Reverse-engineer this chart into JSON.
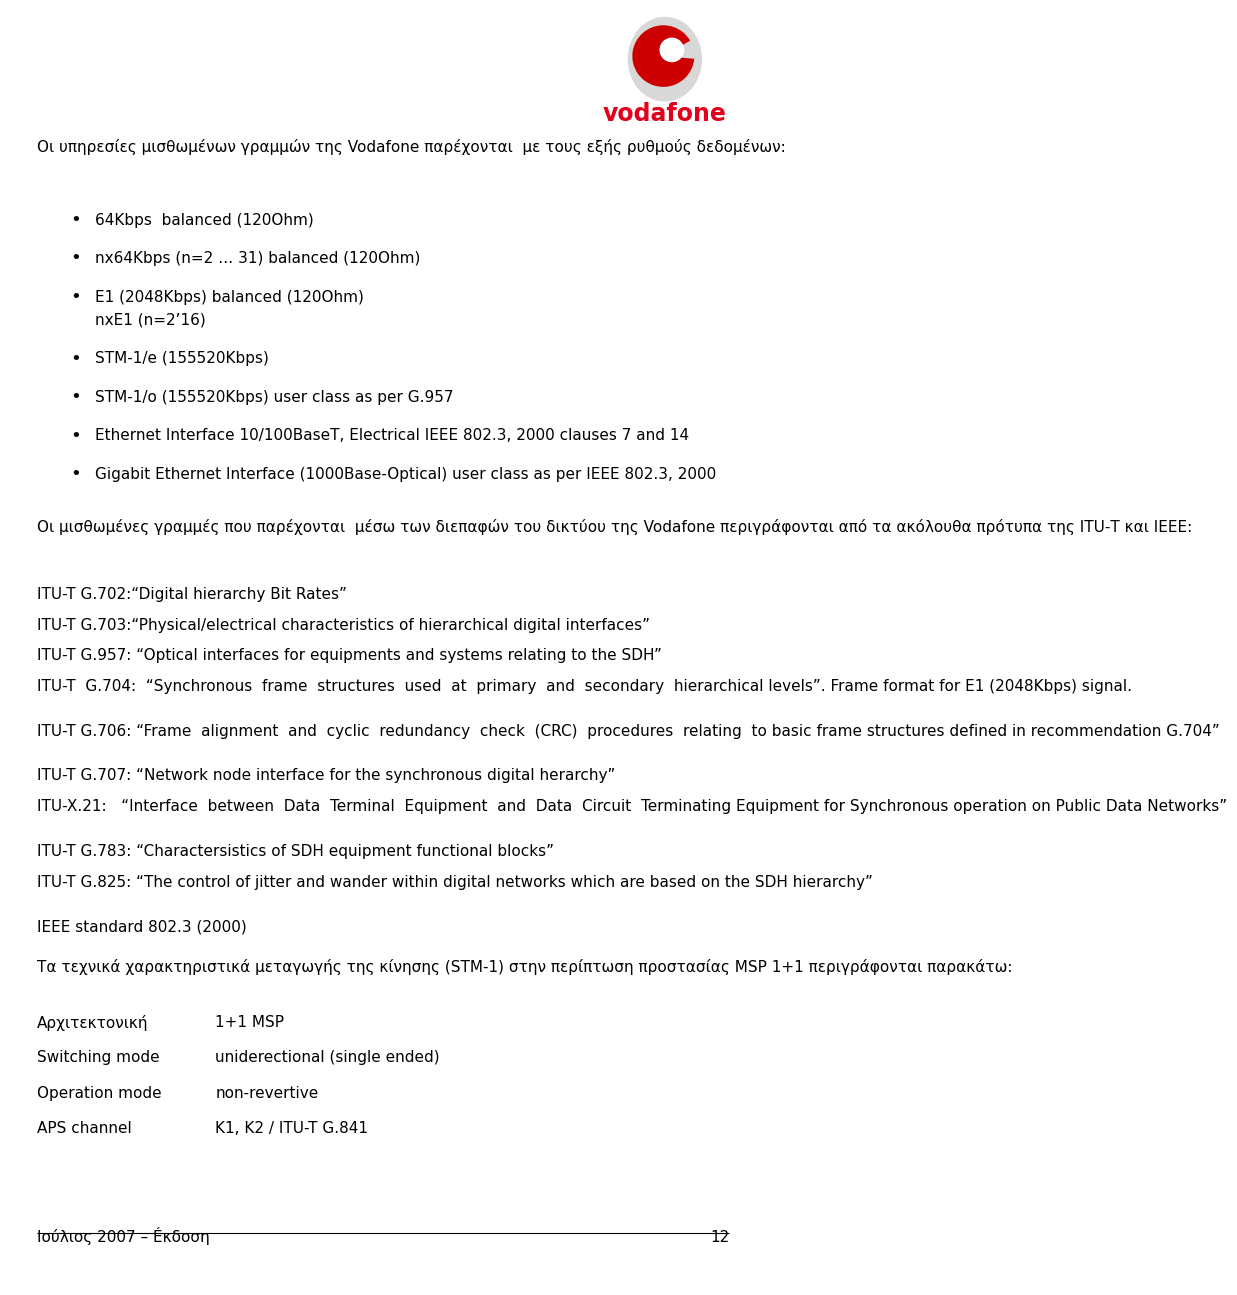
{
  "bg_color": "#ffffff",
  "text_color": "#000000",
  "red_color": "#e2001a",
  "page_number": "12",
  "footer_left": "Ιούλιος 2007 – Éκδοση",
  "intro_text": "Οι υπηρεσίες μισθωμένων γραμμών της Vodafone παρέχονται  με τους εξής ρυθμούς δεδομένων:",
  "bullet_items": [
    "64Kbps  balanced (120Ohm)",
    "nx64Kbps (n=2 … 31) balanced (120Ohm)",
    "E1 (2048Kbps) balanced (120Ohm)|nxE1 (n=2’16)",
    "STM-1/e (155520Kbps)",
    "STM-1/o (155520Kbps) user class as per G.957",
    "Ethernet Interface 10/100BaseT, Electrical IEEE 802.3, 2000 clauses 7 and 14",
    "Gigabit Ethernet Interface (1000Base-Optical) user class as per IEEE 802.3, 2000"
  ],
  "para2_text": "Οι μισθωμένες γραμμές που παρέχονται  μέσω των διεπαφών του δικτύου της Vodafone περιγράφονται από τα ακόλουθα πρότυπα της ΙΤU-Τ και IEEE:",
  "list_items": [
    "ITU-T G.702:“Digital hierarchy Bit Rates”",
    "ITU-T G.703:“Physical/electrical characteristics of hierarchical digital interfaces”",
    "ITU-T G.957: “Optical interfaces for equipments and systems relating to the SDH”",
    "ITU-T  G.704:  “Synchronous  frame  structures  used  at  primary  and  secondary  hierarchical levels”. Frame format for E1 (2048Kbps) signal.",
    "ITU-T G.706: “Frame  alignment  and  cyclic  redundancy  check  (CRC)  procedures  relating  to basic frame structures defined in recommendation G.704”",
    "ITU-T G.707: “Network node interface for the synchronous digital herarchy”",
    "ITU-X.21:   “Interface  between  Data  Terminal  Equipment  and  Data  Circuit  Terminating Equipment for Synchronous operation on Public Data Networks”",
    "ITU-T G.783: “Charactersistics of SDH equipment functional blocks”",
    "ITU-T G.825: “The control of jitter and wander within digital networks which are based on the SDH hierarchy”",
    "IEEE standard 802.3 (2000)"
  ],
  "para3_text": "Τα τεχνικά χαρακτηριστικά μεταγωγής της κίνησης (STM-1) στην περίπτωση προστασίας MSP 1+1 περιγράφονται παρακάτω:",
  "table_rows": [
    [
      "Αρχιτεκτονική",
      "1+1 MSP"
    ],
    [
      "Switching mode",
      "uniderectional (single ended)"
    ],
    [
      "Operation mode",
      "non-revertive"
    ],
    [
      "APS channel",
      "K1, K2 / ITU-T G.841"
    ]
  ]
}
